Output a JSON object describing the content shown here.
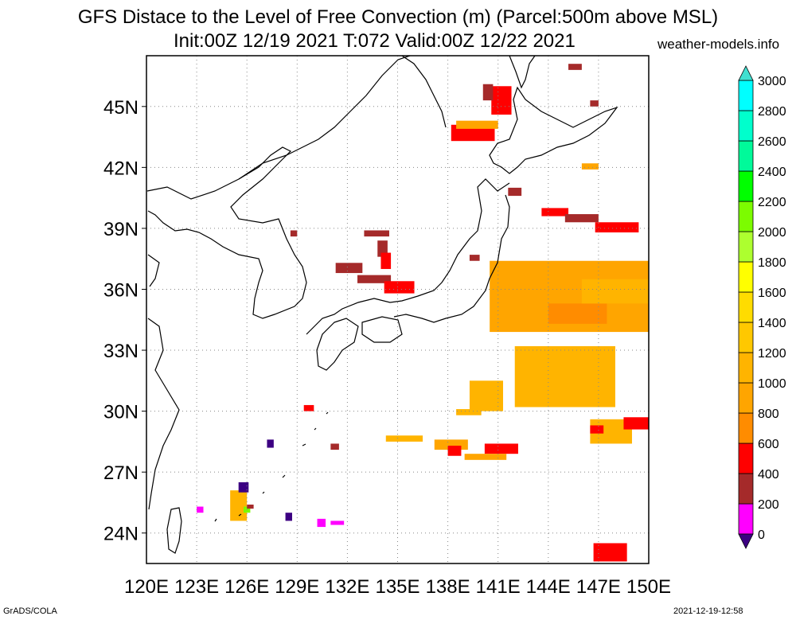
{
  "title": "GFS Distace to the Level of Free Convection (m) (Parcel:500m above MSL)",
  "subtitle": "Init:00Z 12/19 2021 T:072 Valid:00Z 12/22 2021",
  "site": "weather-models.info",
  "footer_left": "GrADS/COLA",
  "footer_right": "2021-12-19-12:58",
  "map": {
    "lon_range": [
      120,
      150
    ],
    "lat_range": [
      22.5,
      47.5
    ],
    "lon_ticks": [
      "120E",
      "123E",
      "126E",
      "129E",
      "132E",
      "135E",
      "138E",
      "141E",
      "144E",
      "147E",
      "150E"
    ],
    "lat_ticks": [
      "24N",
      "27N",
      "30N",
      "33N",
      "36N",
      "39N",
      "42N",
      "45N"
    ],
    "grid": "dotted"
  },
  "colorbar": {
    "labels": [
      "0",
      "200",
      "400",
      "600",
      "800",
      "1000",
      "1200",
      "1400",
      "1600",
      "1800",
      "2000",
      "2200",
      "2400",
      "2600",
      "2800",
      "3000"
    ],
    "colors": [
      "#3c0082",
      "#ff00ff",
      "#a52a2a",
      "#ff0000",
      "#ff8c00",
      "#ffa500",
      "#ffb400",
      "#ffc800",
      "#ffdc00",
      "#ffff00",
      "#adff2f",
      "#7cfc00",
      "#00ff00",
      "#00fa9a",
      "#00ffcc",
      "#00ffff",
      "#40e0d0"
    ]
  }
}
